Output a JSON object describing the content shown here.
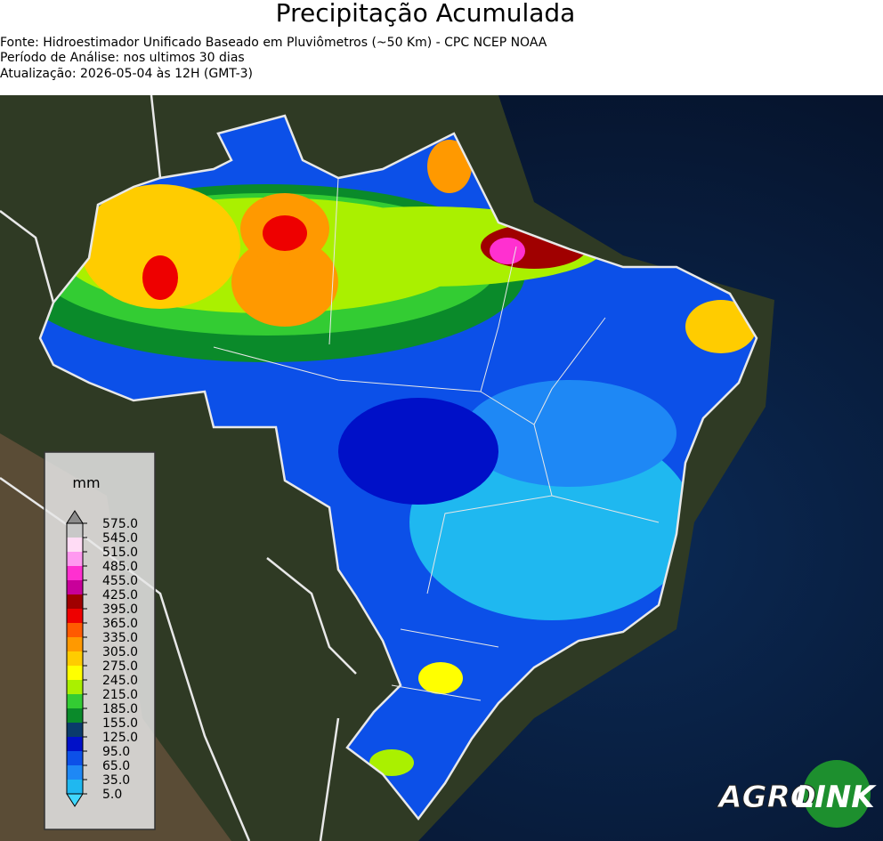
{
  "header": {
    "title": "Precipitação Acumulada",
    "lines": [
      "Fonte: Hidroestimador Unificado Baseado em Pluviômetros (~50 Km) - CPC NCEP NOAA",
      "Período de Análise: nos ultimos 30 dias",
      "Atualização: 2026-05-04 às 12H (GMT-3)"
    ]
  },
  "legend": {
    "unit": "mm",
    "ticks": [
      {
        "value": 5,
        "label": "5.0"
      },
      {
        "value": 35,
        "label": "35.0"
      },
      {
        "value": 65,
        "label": "65.0"
      },
      {
        "value": 95,
        "label": "95.0"
      },
      {
        "value": 125,
        "label": "125.0"
      },
      {
        "value": 155,
        "label": "155.0"
      },
      {
        "value": 185,
        "label": "185.0"
      },
      {
        "value": 215,
        "label": "215.0"
      },
      {
        "value": 245,
        "label": "245.0"
      },
      {
        "value": 275,
        "label": "275.0"
      },
      {
        "value": 305,
        "label": "305.0"
      },
      {
        "value": 335,
        "label": "335.0"
      },
      {
        "value": 365,
        "label": "365.0"
      },
      {
        "value": 395,
        "label": "395.0"
      },
      {
        "value": 425,
        "label": "425.0"
      },
      {
        "value": 455,
        "label": "455.0"
      },
      {
        "value": 485,
        "label": "485.0"
      },
      {
        "value": 515,
        "label": "515.0"
      },
      {
        "value": 545,
        "label": "545.0"
      },
      {
        "value": 575,
        "label": "575.0"
      }
    ],
    "colors": [
      "#1fb8f0",
      "#1e88f5",
      "#0c50e8",
      "#0010c8",
      "#0a3b6b",
      "#0a8a2a",
      "#33cc33",
      "#aaf000",
      "#ffff00",
      "#ffcc00",
      "#ff9900",
      "#ff5a00",
      "#ee0000",
      "#a00000",
      "#c8009a",
      "#ff30d0",
      "#ff99f0",
      "#ffdcf5",
      "#c8c8c8"
    ],
    "under_color": "#40d8ff",
    "over_color": "#8c8c8c"
  },
  "logo": {
    "left": "AGRO",
    "right": "LINK"
  }
}
